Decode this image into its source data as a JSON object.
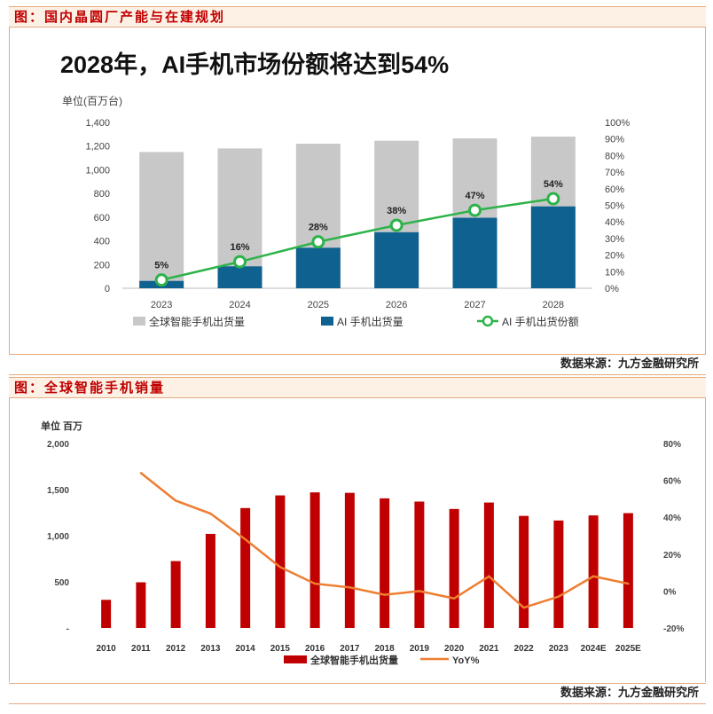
{
  "panel1": {
    "caption": "图：国内晶圆厂产能与在建规划",
    "source": "数据来源：九方金融研究所"
  },
  "panel2": {
    "caption": "图：全球智能手机销量",
    "source": "数据来源：九方金融研究所"
  },
  "colors": {
    "caption_red": "#c00000",
    "bar_grey": "#c8c8c8",
    "bar_blue": "#0f6190",
    "line_green": "#2db34a",
    "bar_red": "#c00000",
    "line_orange": "#ee7d31"
  },
  "chart_data": [
    {
      "type": "bar",
      "title": "2028年，AI手机市场份额将达到54%",
      "ylabel": "单位(百万台)",
      "categories": [
        "2023",
        "2024",
        "2025",
        "2026",
        "2027",
        "2028"
      ],
      "ylim": [
        0,
        1400
      ],
      "yticks": [
        "0",
        "200",
        "400",
        "600",
        "800",
        "1,000",
        "1,200",
        "1,400"
      ],
      "y2lim": [
        0,
        100
      ],
      "y2ticks": [
        "0%",
        "10%",
        "20%",
        "30%",
        "40%",
        "50%",
        "60%",
        "70%",
        "80%",
        "90%",
        "100%"
      ],
      "series": [
        {
          "name": "全球智能手机出货量",
          "kind": "bar",
          "values": [
            1150,
            1180,
            1220,
            1245,
            1265,
            1280
          ]
        },
        {
          "name": "AI 手机出货量",
          "kind": "bar",
          "values": [
            62,
            185,
            342,
            473,
            595,
            691
          ]
        },
        {
          "name": "AI 手机出货份额",
          "kind": "line",
          "axis": "right",
          "values": [
            5,
            16,
            28,
            38,
            47,
            54
          ],
          "labels": [
            "5%",
            "16%",
            "28%",
            "38%",
            "47%",
            "54%"
          ]
        }
      ],
      "legend": [
        "全球智能手机出货量",
        "AI 手机出货量",
        "AI 手机出货份额"
      ]
    },
    {
      "type": "bar",
      "title": "",
      "ylabel": "单位  百万",
      "categories": [
        "2010",
        "2011",
        "2012",
        "2013",
        "2014",
        "2015",
        "2016",
        "2017",
        "2018",
        "2019",
        "2020",
        "2021",
        "2022",
        "2023",
        "2024E",
        "2025E"
      ],
      "ylim": [
        0,
        2000
      ],
      "yticks": [
        "-",
        "500",
        "1,000",
        "1,500",
        "2,000"
      ],
      "y2lim": [
        -20,
        80
      ],
      "y2ticks": [
        "-20%",
        "0%",
        "20%",
        "40%",
        "60%",
        "80%"
      ],
      "series": [
        {
          "name": "全球智能手机出货量",
          "kind": "bar",
          "values": [
            305,
            495,
            725,
            1020,
            1300,
            1437,
            1470,
            1465,
            1405,
            1370,
            1290,
            1360,
            1215,
            1165,
            1220,
            1245
          ]
        },
        {
          "name": "YoY%",
          "kind": "line",
          "axis": "right",
          "values": [
            null,
            64,
            49,
            42,
            28,
            13,
            4,
            2,
            -2,
            0,
            -4,
            8,
            -9,
            -3,
            8,
            4
          ]
        }
      ],
      "legend": [
        "全球智能手机出货量",
        "YoY%"
      ]
    }
  ]
}
